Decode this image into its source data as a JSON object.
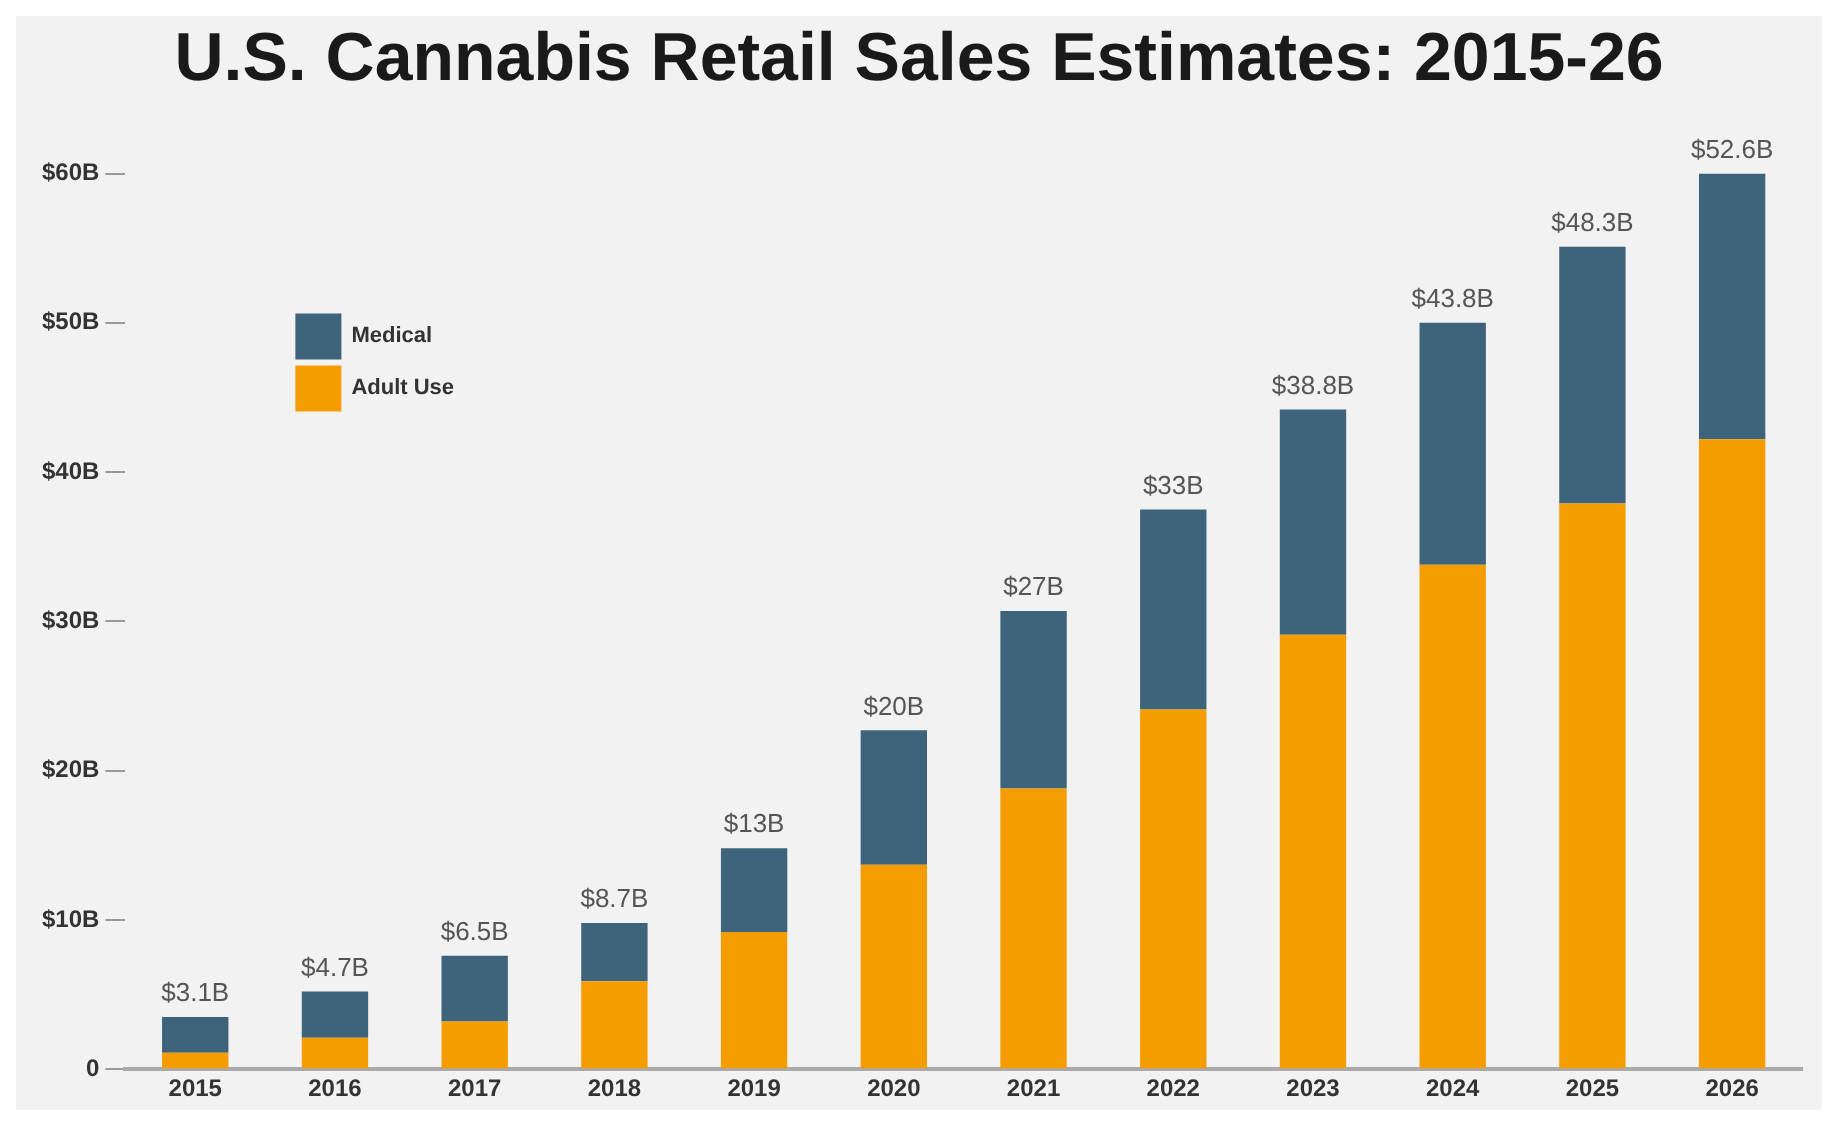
{
  "chart_data": {
    "type": "bar",
    "title": "U.S. Cannabis Retail Sales Estimates: 2015-26",
    "stacked": true,
    "legend": "top left",
    "grid": false,
    "categories": [
      "2015",
      "2016",
      "2017",
      "2018",
      "2019",
      "2020",
      "2021",
      "2022",
      "2023",
      "2024",
      "2025",
      "2026"
    ],
    "series": [
      {
        "name": "Adult Use",
        "color": "#f59c00",
        "values": [
          1.1,
          2.1,
          3.2,
          5.9,
          9.2,
          13.7,
          18.8,
          24.1,
          29.1,
          33.8,
          37.9,
          42.2
        ]
      },
      {
        "name": "Medical",
        "color": "#3e647b",
        "values": [
          2.4,
          3.1,
          4.4,
          3.9,
          5.6,
          9.0,
          11.9,
          13.4,
          15.1,
          16.2,
          17.2,
          17.8
        ]
      }
    ],
    "ylim": [
      0,
      60
    ],
    "yticks": [
      0,
      {
        "value": 10,
        "label": "$10B"
      },
      {
        "value": 20,
        "label": "$20B"
      },
      {
        "value": 30,
        "label": "$30B"
      },
      {
        "value": 40,
        "label": "$40B"
      },
      {
        "value": 50,
        "label": "$50B"
      },
      {
        "value": 60,
        "label": "$60B"
      }
    ],
    "annotations": [
      {
        "text": "$3.1B",
        "x": "2015",
        "y": 3.5
      },
      {
        "text": "$4.7B",
        "x": "2016",
        "y": 5.2
      },
      {
        "text": "$6.5B",
        "x": "2017",
        "y": 7.6
      },
      {
        "text": "$8.7B",
        "x": "2018",
        "y": 9.8
      },
      {
        "text": "$13B",
        "x": "2019",
        "y": 14.8
      },
      {
        "text": "$20B",
        "x": "2020",
        "y": 22.7
      },
      {
        "text": "$27B",
        "x": "2021",
        "y": 30.7
      },
      {
        "text": "$33B",
        "x": "2022",
        "y": 37.5
      },
      {
        "text": "$38.8B",
        "x": "2023",
        "y": 44.2
      },
      {
        "text": "$43.8B",
        "x": "2024",
        "y": 50.0
      },
      {
        "text": "$48.3B",
        "x": "2025",
        "y": 55.1
      },
      {
        "text": "$52.6B",
        "x": "2026",
        "y": 60.0
      }
    ]
  }
}
